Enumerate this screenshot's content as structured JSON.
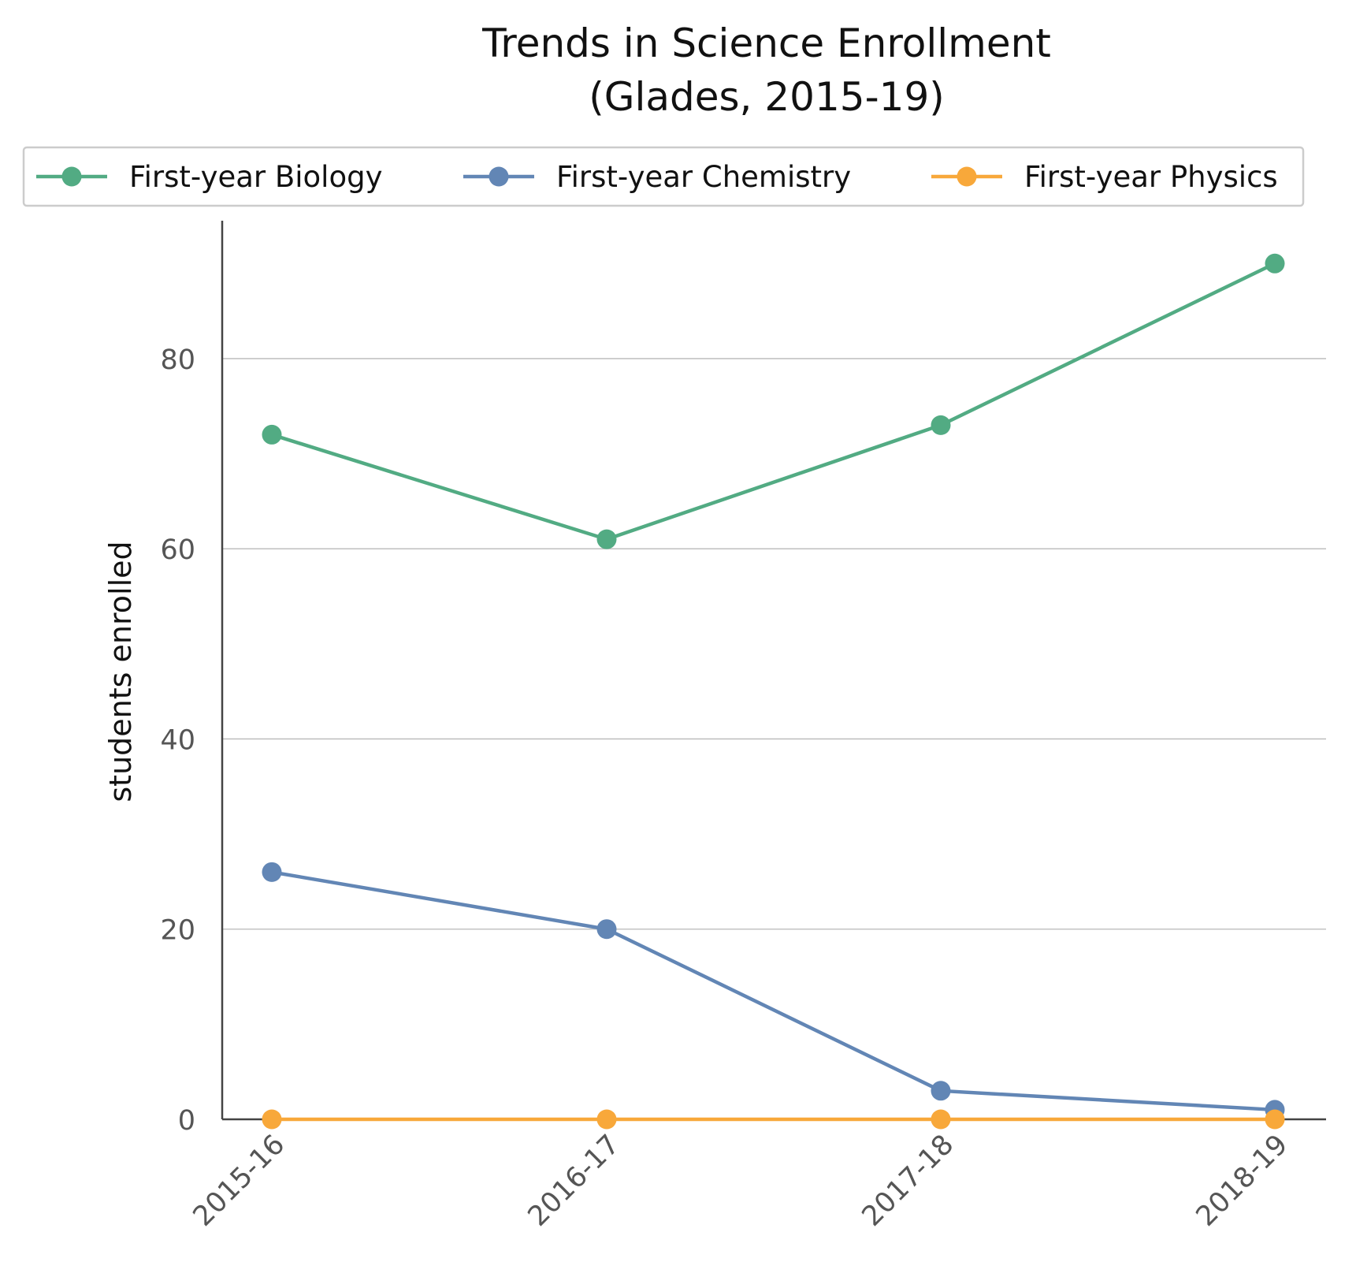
{
  "chart_data": {
    "type": "line",
    "title_lines": [
      "Trends in Science Enrollment",
      "(Glades, 2015-19)"
    ],
    "xlabel": "",
    "ylabel": "students enrolled",
    "categories": [
      "2015-16",
      "2016-17",
      "2017-18",
      "2018-19"
    ],
    "ylim": [
      0,
      94.5
    ],
    "yticks": [
      0,
      20,
      40,
      60,
      80
    ],
    "grid": "horizontal",
    "legend_placement": "top",
    "series": [
      {
        "name": "First-year Biology",
        "color": "#52ab83",
        "values": [
          72,
          61,
          73,
          90
        ]
      },
      {
        "name": "First-year Chemistry",
        "color": "#6286b5",
        "values": [
          26,
          20,
          3,
          1
        ]
      },
      {
        "name": "First-year Physics",
        "color": "#f8a83a",
        "values": [
          0,
          0,
          0,
          0
        ]
      }
    ]
  }
}
